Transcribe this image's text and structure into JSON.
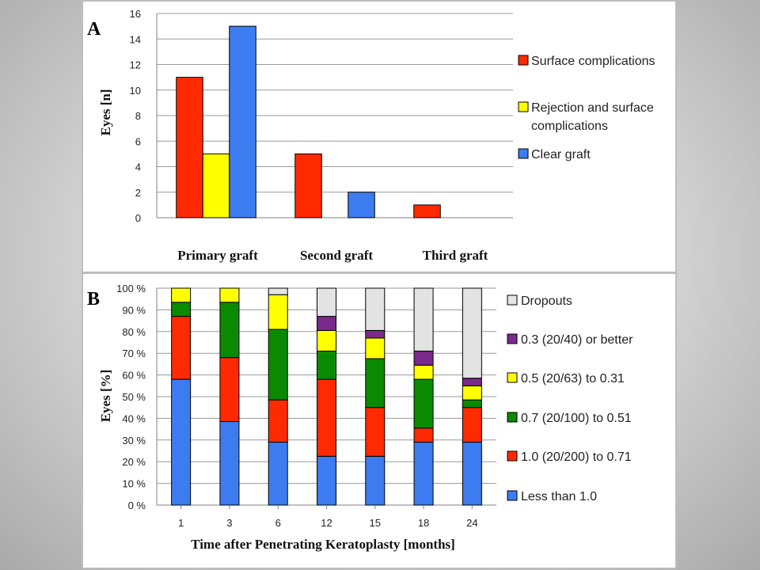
{
  "chart_data": [
    {
      "panel_label": "A",
      "type": "bar",
      "categories": [
        "Primary graft",
        "Second graft",
        "Third graft"
      ],
      "ylabel": "Eyes [n]",
      "xlabel": "",
      "ylim": [
        0,
        16
      ],
      "yticks": [
        "0",
        "2",
        "4",
        "6",
        "8",
        "10",
        "12",
        "14",
        "16"
      ],
      "grid": true,
      "legend_position": "right",
      "series": [
        {
          "name": "Surface complications",
          "color": "#ff2a00",
          "values": [
            11,
            5,
            1
          ]
        },
        {
          "name": "Rejection and surface complications",
          "legend_lines": [
            "Rejection and surface",
            "complications"
          ],
          "color": "#ffff00",
          "values": [
            5,
            0,
            0
          ]
        },
        {
          "name": "Clear graft",
          "color": "#3d7cf0",
          "values": [
            15,
            2,
            0
          ]
        }
      ]
    },
    {
      "panel_label": "B",
      "type": "bar",
      "stacked": true,
      "categories": [
        "1",
        "3",
        "6",
        "12",
        "15",
        "18",
        "24"
      ],
      "ylabel": "Eyes [%]",
      "xlabel": "Time after Penetrating Keratoplasty [months]",
      "ylim": [
        0,
        100
      ],
      "yticks": [
        "0 %",
        "10 %",
        "20 %",
        "30 %",
        "40 %",
        "50 %",
        "60 %",
        "70 %",
        "80 %",
        "90 %",
        "100 %"
      ],
      "grid": true,
      "legend_position": "right",
      "series": [
        {
          "name": "Less than 1.0",
          "color": "#3d7cf0",
          "values": [
            58,
            38.5,
            29,
            22.5,
            22.5,
            29,
            29
          ]
        },
        {
          "name": "1.0 (20/200) to 0.71",
          "color": "#ff2a00",
          "values": [
            29,
            29.5,
            19.5,
            35.5,
            22.5,
            6.5,
            16
          ]
        },
        {
          "name": "0.7 (20/100) to 0.51",
          "color": "#0a8a00",
          "values": [
            6.5,
            25.5,
            32.5,
            13,
            22.5,
            22.5,
            3.5
          ]
        },
        {
          "name": "0.5 (20/63) to 0.31",
          "color": "#ffff00",
          "values": [
            6.5,
            6.5,
            16,
            9.5,
            9.5,
            6.5,
            6.5
          ]
        },
        {
          "name": "0.3 (20/40) or better",
          "color": "#7a2a8c",
          "values": [
            0,
            0,
            0,
            6.5,
            3.5,
            6.5,
            3.5
          ]
        },
        {
          "name": "Dropouts",
          "color": "#e3e3e3",
          "values": [
            0,
            0,
            3,
            13,
            19.5,
            29,
            41.5
          ]
        }
      ]
    }
  ]
}
